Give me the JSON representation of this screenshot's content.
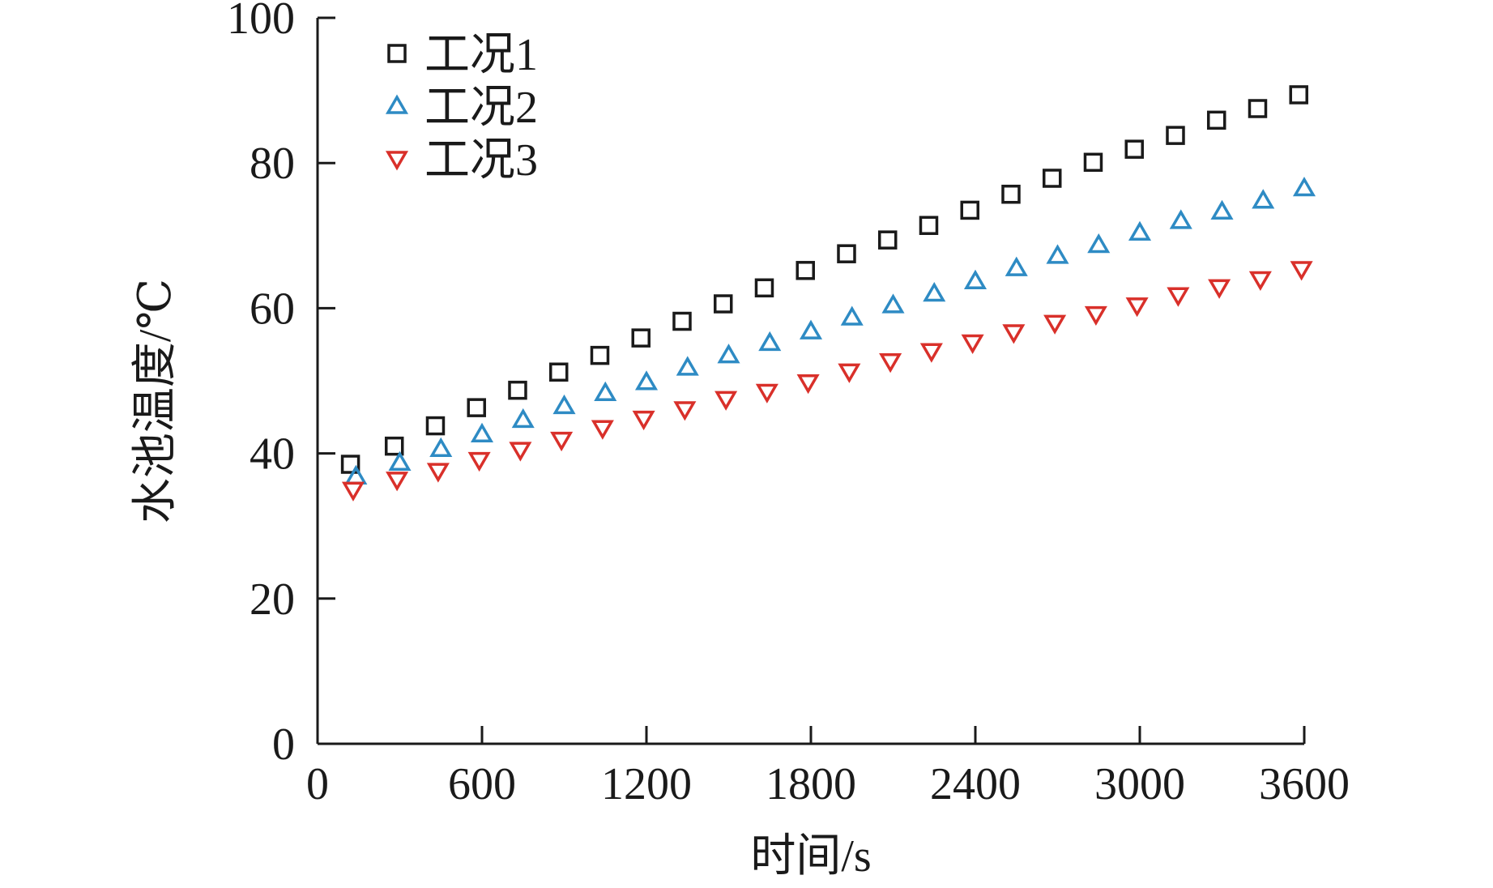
{
  "chart_data": {
    "type": "scatter",
    "title": "",
    "xlabel": "时间/s",
    "ylabel": "水池温度/℃",
    "xlim": [
      0,
      3600
    ],
    "ylim": [
      0,
      100
    ],
    "xticks": [
      0,
      600,
      1200,
      1800,
      2400,
      3000,
      3600
    ],
    "yticks": [
      0,
      20,
      40,
      60,
      80,
      100
    ],
    "xtick_labels": [
      "0",
      "600",
      "1200",
      "1800",
      "2400",
      "3000",
      "3600"
    ],
    "ytick_labels": [
      "0",
      "20",
      "40",
      "60",
      "80",
      "100"
    ],
    "grid": false,
    "legend_position": "top-left",
    "series": [
      {
        "name": "工况1",
        "marker": "square",
        "color": "#1a1a1a",
        "x": [
          120,
          280,
          430,
          580,
          730,
          880,
          1030,
          1180,
          1330,
          1480,
          1630,
          1780,
          1930,
          2080,
          2230,
          2380,
          2530,
          2680,
          2830,
          2980,
          3130,
          3280,
          3430,
          3580
        ],
        "y": [
          38.5,
          41.0,
          43.8,
          46.3,
          48.7,
          51.2,
          53.5,
          55.9,
          58.2,
          60.6,
          62.8,
          65.2,
          67.5,
          69.4,
          71.4,
          73.5,
          75.7,
          77.9,
          80.1,
          81.9,
          83.8,
          85.9,
          87.5,
          89.4
        ]
      },
      {
        "name": "工况2",
        "marker": "triangle-up",
        "color": "#2e8bc4",
        "x": [
          140,
          300,
          450,
          600,
          750,
          900,
          1050,
          1200,
          1350,
          1500,
          1650,
          1800,
          1950,
          2100,
          2250,
          2400,
          2550,
          2700,
          2850,
          3000,
          3150,
          3300,
          3450,
          3600
        ],
        "y": [
          36.8,
          38.7,
          40.6,
          42.6,
          44.6,
          46.5,
          48.3,
          49.8,
          51.8,
          53.5,
          55.2,
          56.8,
          58.7,
          60.4,
          62.0,
          63.7,
          65.5,
          67.2,
          68.7,
          70.4,
          72.0,
          73.3,
          74.8,
          76.5
        ]
      },
      {
        "name": "工况3",
        "marker": "triangle-down",
        "color": "#d9302a",
        "x": [
          130,
          290,
          440,
          590,
          740,
          890,
          1040,
          1190,
          1340,
          1490,
          1640,
          1790,
          1940,
          2090,
          2240,
          2390,
          2540,
          2690,
          2840,
          2990,
          3140,
          3290,
          3440,
          3590
        ],
        "y": [
          35.0,
          36.4,
          37.6,
          39.1,
          40.5,
          41.9,
          43.5,
          44.8,
          46.1,
          47.5,
          48.5,
          49.8,
          51.3,
          52.7,
          54.1,
          55.3,
          56.7,
          58.0,
          59.2,
          60.4,
          61.8,
          62.9,
          64.0,
          65.4
        ]
      }
    ]
  }
}
